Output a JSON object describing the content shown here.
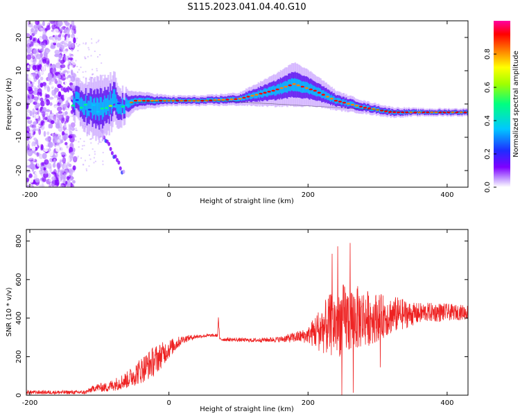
{
  "title": "S115.2023.041.04.40.G10",
  "chart_data": [
    {
      "type": "heatmap",
      "xlabel": "Height of straight line (km)",
      "ylabel": "Frequency (Hz)",
      "xlim": [
        -205,
        430
      ],
      "ylim": [
        -25,
        25
      ],
      "xticks": [
        -200,
        0,
        200,
        400
      ],
      "yticks": [
        -20,
        -10,
        0,
        10,
        20
      ],
      "colorbar": {
        "label": "Normalized spectral amplitude",
        "range": [
          0,
          1
        ],
        "ticks": [
          "0.0",
          "0.2",
          "0.4",
          "0.6",
          "0.8"
        ],
        "colormap": [
          "#ffffff",
          "#c49bff",
          "#7f00ff",
          "#1e2dff",
          "#00c8ff",
          "#00ff80",
          "#a0ff00",
          "#ffff00",
          "#ff8000",
          "#ff0000",
          "#ff00a0"
        ]
      },
      "ridge": {
        "x": [
          -135,
          -120,
          -100,
          -80,
          -65,
          -50,
          0,
          50,
          100,
          150,
          180,
          210,
          240,
          280,
          320,
          360,
          400,
          430
        ],
        "freq": [
          1,
          -1,
          -2,
          1,
          -1,
          1,
          1,
          1,
          1.5,
          4,
          6,
          4,
          1,
          -1,
          -2.5,
          -2.5,
          -2.5,
          -2.5
        ],
        "spread": [
          3,
          4,
          5,
          4,
          2.5,
          1.5,
          0.8,
          0.8,
          1,
          2.5,
          3.5,
          2.5,
          1.5,
          1,
          0.8,
          0.6,
          0.6,
          0.6
        ]
      },
      "noise_region": {
        "x": [
          -205,
          -135
        ],
        "level": "high"
      },
      "secondary_track": {
        "x": [
          -105,
          -65
        ],
        "freq": [
          -5,
          -21
        ]
      }
    },
    {
      "type": "line",
      "xlabel": "Height of straight line (km)",
      "ylabel": "SNR (10 * v/v)",
      "xlim": [
        -205,
        430
      ],
      "ylim": [
        0,
        860
      ],
      "xticks": [
        -200,
        0,
        200,
        400
      ],
      "yticks": [
        0,
        200,
        400,
        600,
        800
      ],
      "color": "#ee2222",
      "series": [
        {
          "x": [
            -205,
            -150,
            -120,
            -105,
            -90,
            -60,
            -40,
            -20,
            0,
            20,
            40,
            60,
            70,
            71,
            73,
            80,
            120,
            160,
            200,
            210,
            230,
            250,
            270,
            290,
            310,
            330,
            350,
            370,
            390,
            410,
            430
          ],
          "base": [
            15,
            15,
            15,
            40,
            40,
            80,
            130,
            180,
            240,
            290,
            305,
            310,
            310,
            405,
            290,
            290,
            285,
            290,
            310,
            330,
            360,
            390,
            400,
            400,
            410,
            420,
            420,
            430,
            430,
            430,
            430
          ],
          "spread": [
            10,
            10,
            10,
            20,
            25,
            45,
            70,
            80,
            50,
            20,
            10,
            8,
            8,
            10,
            10,
            10,
            10,
            15,
            40,
            90,
            160,
            190,
            170,
            140,
            110,
            90,
            60,
            50,
            50,
            40,
            40
          ]
        }
      ]
    }
  ]
}
